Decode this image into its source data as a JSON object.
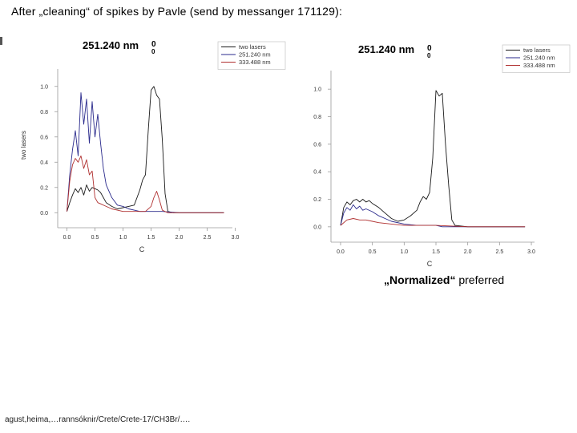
{
  "slide": {
    "title": "After „cleaning“ of spikes by Pavle (send by messanger 171129):",
    "caption_prefix": "„Normalized“",
    "caption_suffix": " preferred",
    "footer": "agust,heima,…rannsóknir/Crete/Crete-17/CH3Br/…."
  },
  "colors": {
    "two_lasers": "#1a1a1a",
    "nm251": "#2a2a8c",
    "nm333": "#b03030",
    "axis": "#9a9a9a"
  },
  "chart_data": [
    {
      "type": "line",
      "title": "251.240 nm",
      "title_sup": "0",
      "title_sub": "0",
      "xlabel": "C",
      "ylabel": "two lasers",
      "xlim": [
        -0.05,
        2.95
      ],
      "ylim": [
        -0.03,
        1.1
      ],
      "xticks": [
        "0.0",
        "0.5",
        "1.0",
        "1.5",
        "2.0",
        "2.5",
        "3.0"
      ],
      "yticks": [
        "0.0",
        "0.2",
        "0.4",
        "0.6",
        "0.8",
        "1.0"
      ],
      "legend": "top-right",
      "series": [
        {
          "name": "two lasers",
          "color": "#1a1a1a",
          "x": [
            0.0,
            0.05,
            0.1,
            0.15,
            0.2,
            0.25,
            0.3,
            0.35,
            0.4,
            0.45,
            0.5,
            0.55,
            0.6,
            0.65,
            0.7,
            0.8,
            0.9,
            1.0,
            1.1,
            1.2,
            1.3,
            1.35,
            1.4,
            1.45,
            1.5,
            1.55,
            1.6,
            1.65,
            1.7,
            1.75,
            1.8,
            1.9,
            2.0,
            2.2,
            2.5,
            2.8
          ],
          "y": [
            0.01,
            0.08,
            0.14,
            0.19,
            0.16,
            0.2,
            0.14,
            0.22,
            0.17,
            0.2,
            0.19,
            0.18,
            0.16,
            0.12,
            0.08,
            0.05,
            0.03,
            0.04,
            0.05,
            0.06,
            0.18,
            0.26,
            0.3,
            0.65,
            0.97,
            1.0,
            0.93,
            0.9,
            0.58,
            0.15,
            0.01,
            0.0,
            0.0,
            0.0,
            0.0,
            0.0
          ]
        },
        {
          "name": "251.240 nm",
          "color": "#2a2a8c",
          "x": [
            0.0,
            0.05,
            0.1,
            0.15,
            0.2,
            0.25,
            0.3,
            0.35,
            0.4,
            0.45,
            0.5,
            0.55,
            0.6,
            0.65,
            0.7,
            0.8,
            0.9,
            1.0,
            1.1,
            1.2,
            1.3,
            1.5,
            1.7,
            2.0,
            2.5,
            2.8
          ],
          "y": [
            0.01,
            0.3,
            0.5,
            0.65,
            0.45,
            0.95,
            0.7,
            0.9,
            0.55,
            0.88,
            0.6,
            0.78,
            0.55,
            0.35,
            0.22,
            0.12,
            0.06,
            0.05,
            0.03,
            0.02,
            0.01,
            0.01,
            0.01,
            0.0,
            0.0,
            0.0
          ]
        },
        {
          "name": "333.488 nm",
          "color": "#b03030",
          "x": [
            0.0,
            0.05,
            0.1,
            0.15,
            0.2,
            0.25,
            0.3,
            0.35,
            0.4,
            0.45,
            0.5,
            0.55,
            0.6,
            0.7,
            0.8,
            0.9,
            1.0,
            1.2,
            1.4,
            1.5,
            1.55,
            1.6,
            1.65,
            1.7,
            1.8,
            2.0,
            2.5,
            2.8
          ],
          "y": [
            0.01,
            0.25,
            0.38,
            0.43,
            0.4,
            0.45,
            0.35,
            0.42,
            0.3,
            0.33,
            0.12,
            0.08,
            0.07,
            0.05,
            0.03,
            0.02,
            0.01,
            0.01,
            0.01,
            0.05,
            0.12,
            0.17,
            0.1,
            0.02,
            0.0,
            0.0,
            0.0,
            0.0
          ]
        }
      ]
    },
    {
      "type": "line",
      "title": "251.240 nm",
      "title_sup": "0",
      "title_sub": "0",
      "xlabel": "C",
      "ylabel": "",
      "xlim": [
        -0.05,
        3.05
      ],
      "ylim": [
        -0.03,
        1.1
      ],
      "xticks": [
        "0.0",
        "0.5",
        "1.0",
        "1.5",
        "2.0",
        "2.5",
        "3.0"
      ],
      "yticks": [
        "0.0",
        "0.2",
        "0.4",
        "0.6",
        "0.8",
        "1.0"
      ],
      "legend": "top-right",
      "series": [
        {
          "name": "two lasers",
          "color": "#1a1a1a",
          "x": [
            0.0,
            0.05,
            0.1,
            0.15,
            0.2,
            0.25,
            0.3,
            0.35,
            0.4,
            0.45,
            0.5,
            0.6,
            0.7,
            0.8,
            0.9,
            1.0,
            1.1,
            1.2,
            1.25,
            1.3,
            1.35,
            1.4,
            1.45,
            1.5,
            1.55,
            1.6,
            1.65,
            1.7,
            1.75,
            1.8,
            2.0,
            2.5,
            2.9
          ],
          "y": [
            0.01,
            0.14,
            0.18,
            0.16,
            0.19,
            0.2,
            0.18,
            0.2,
            0.18,
            0.19,
            0.17,
            0.14,
            0.1,
            0.06,
            0.04,
            0.05,
            0.08,
            0.12,
            0.18,
            0.22,
            0.2,
            0.25,
            0.5,
            0.99,
            0.95,
            0.97,
            0.6,
            0.3,
            0.05,
            0.01,
            0.0,
            0.0,
            0.0
          ]
        },
        {
          "name": "251.240 nm",
          "color": "#2a2a8c",
          "x": [
            0.0,
            0.05,
            0.1,
            0.15,
            0.2,
            0.25,
            0.3,
            0.35,
            0.4,
            0.5,
            0.6,
            0.7,
            0.8,
            1.0,
            1.2,
            1.4,
            1.5,
            1.6,
            1.7,
            2.0,
            2.9
          ],
          "y": [
            0.01,
            0.1,
            0.14,
            0.12,
            0.16,
            0.13,
            0.15,
            0.12,
            0.13,
            0.11,
            0.08,
            0.06,
            0.04,
            0.02,
            0.01,
            0.01,
            0.01,
            0.0,
            0.0,
            0.0,
            0.0
          ]
        },
        {
          "name": "333.488 nm",
          "color": "#b03030",
          "x": [
            0.0,
            0.1,
            0.2,
            0.3,
            0.4,
            0.5,
            0.6,
            0.8,
            1.0,
            1.5,
            2.0,
            2.9
          ],
          "y": [
            0.01,
            0.05,
            0.06,
            0.05,
            0.05,
            0.04,
            0.03,
            0.02,
            0.01,
            0.01,
            0.0,
            0.0
          ]
        }
      ]
    }
  ]
}
